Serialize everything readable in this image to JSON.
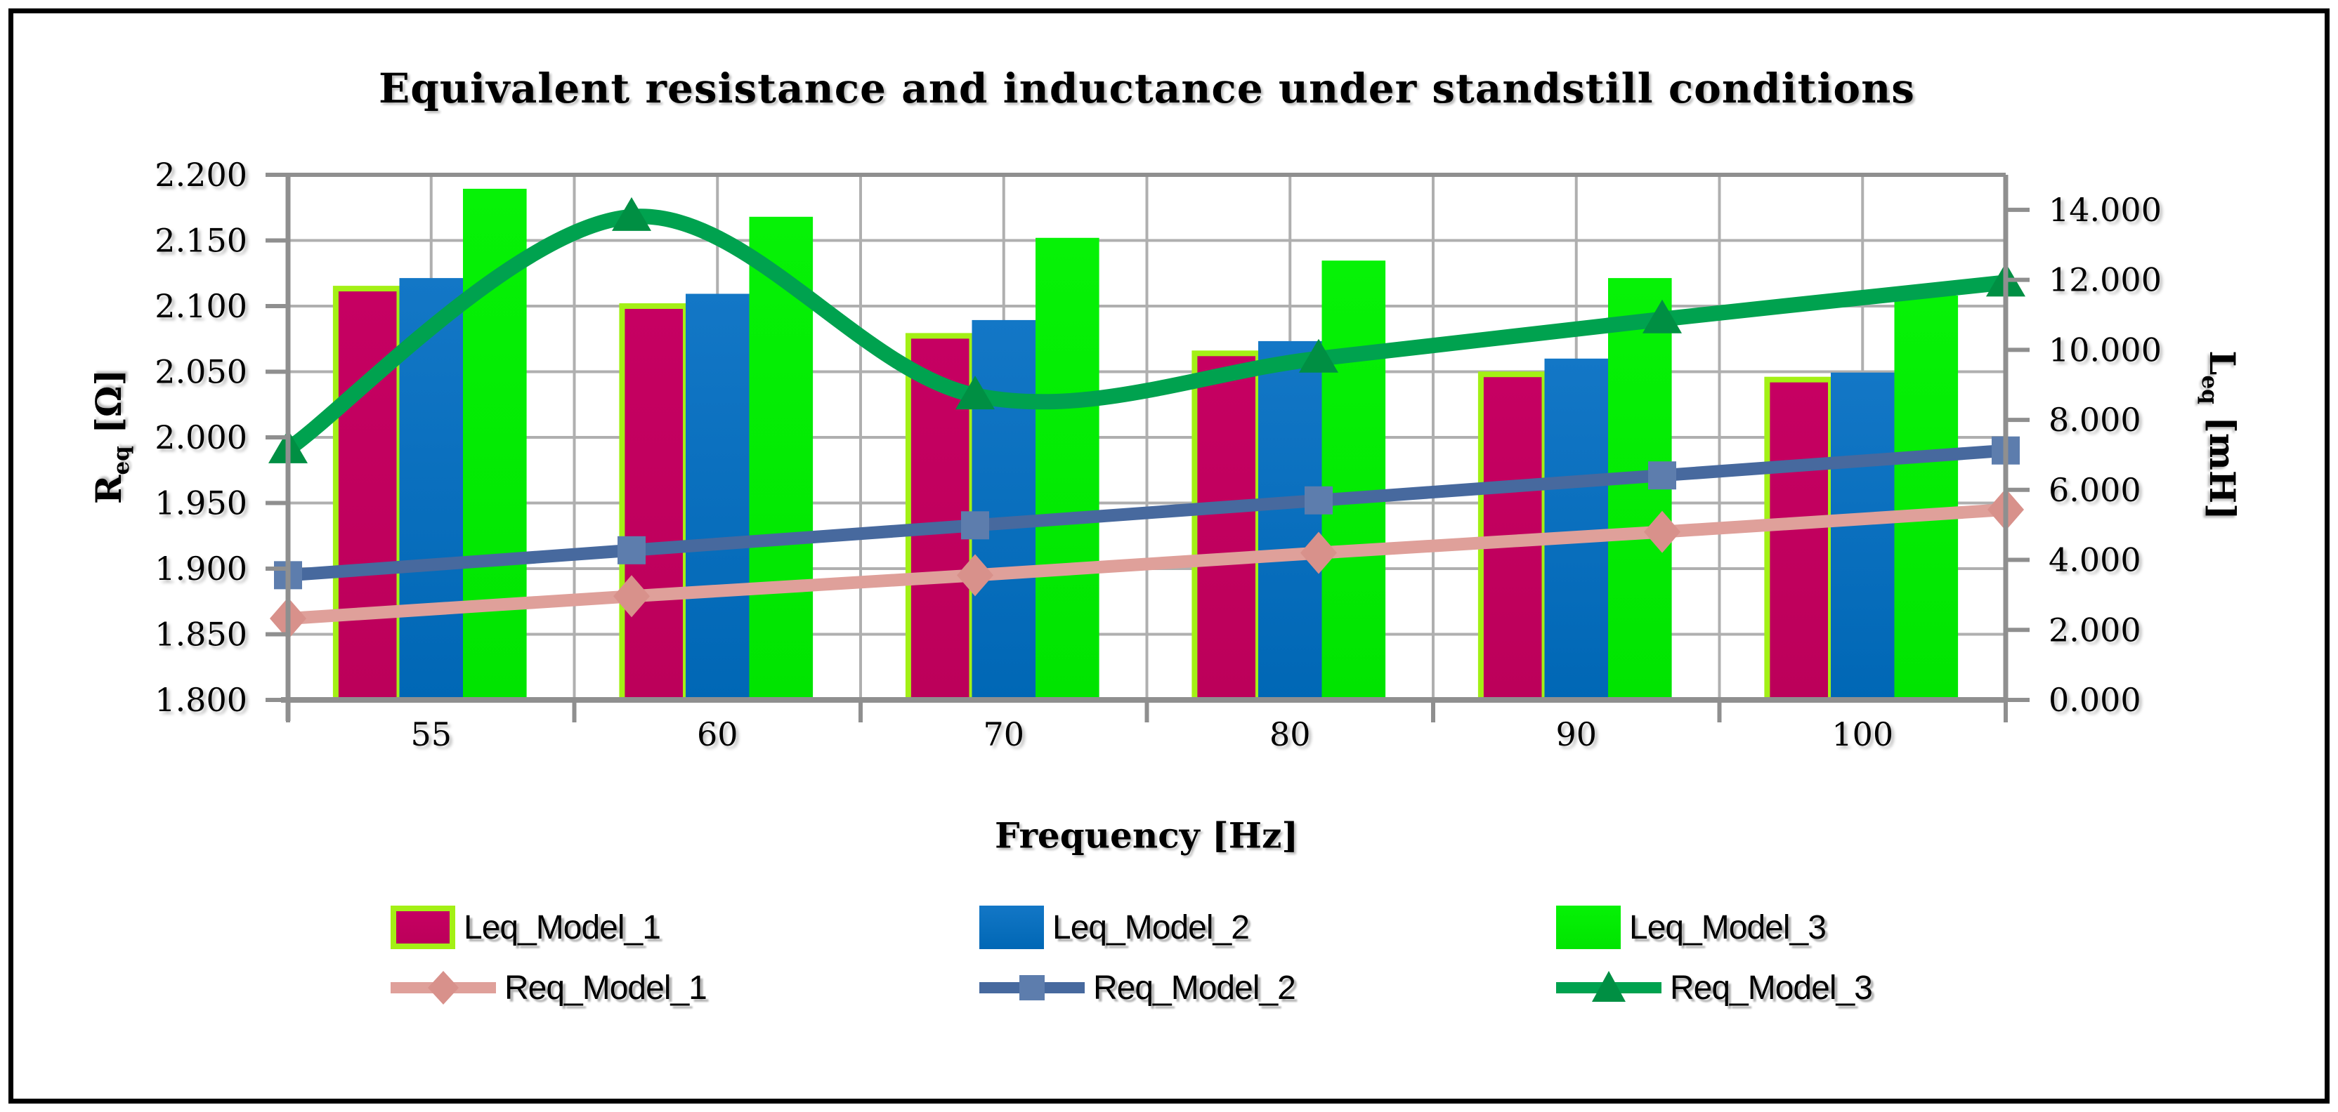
{
  "chart_data": {
    "type": "bar+line combo",
    "title": "Equivalent resistance and inductance under standstill conditions",
    "categories": [
      "55",
      "60",
      "70",
      "80",
      "90",
      "100"
    ],
    "x_axis": {
      "title": "Frequency [Hz]"
    },
    "left_axis": {
      "main": "R",
      "sub": "eq",
      "unit": " [Ω]",
      "min": 1.8,
      "max": 2.2,
      "step": 0.05,
      "tick_labels": [
        "2.200",
        "2.150",
        "2.100",
        "2.050",
        "2.000",
        "1.950",
        "1.900",
        "1.850",
        "1.800"
      ]
    },
    "right_axis": {
      "main": "L",
      "sub": "eq",
      "unit": " [mH]",
      "min": 0,
      "max": 15,
      "step": 2,
      "tick_labels": [
        "14.000",
        "12.000",
        "10.000",
        "8.000",
        "6.000",
        "4.000",
        "2.000",
        "0.000"
      ]
    },
    "bar_series": [
      {
        "name": "Leq_Model_1",
        "axis": "right",
        "color": "#C60062",
        "color2": "#BC005A",
        "border": "#A3F015",
        "values": [
          11.75,
          11.25,
          10.4,
          9.9,
          9.3,
          9.15
        ]
      },
      {
        "name": "Leq_Model_2",
        "axis": "right",
        "color": "#1377C6",
        "color2": "#0067B5",
        "border": null,
        "values": [
          12.05,
          11.6,
          10.85,
          10.25,
          9.75,
          9.35
        ]
      },
      {
        "name": "Leq_Model_3",
        "axis": "right",
        "color": "#06F206",
        "color2": "#00E400",
        "border": null,
        "values": [
          14.6,
          13.8,
          13.2,
          12.55,
          12.05,
          11.55
        ]
      }
    ],
    "line_series": [
      {
        "name": "Req_Model_1",
        "axis": "left",
        "color": "#DFA09A",
        "marker_color": "#D8918B",
        "marker": "diamond",
        "values": [
          1.862,
          1.879,
          1.895,
          1.912,
          1.928,
          1.945
        ]
      },
      {
        "name": "Req_Model_2",
        "axis": "left",
        "color": "#47699E",
        "marker_color": "#5D7DAD",
        "marker": "square",
        "values": [
          1.895,
          1.914,
          1.933,
          1.952,
          1.971,
          1.99
        ]
      },
      {
        "name": "Req_Model_3",
        "axis": "left",
        "color": "#00A24F",
        "marker_color": "#008F43",
        "marker": "triangle",
        "values": [
          1.991,
          2.168,
          2.032,
          2.06,
          2.09,
          2.118
        ]
      }
    ],
    "layout_hints": {
      "grid": "on",
      "legend_position": "bottom",
      "gridline_color": "#AFAFAF",
      "axis_color": "#8F8F8F",
      "background": "#FFFFFF",
      "frame_color": "#000000"
    }
  }
}
